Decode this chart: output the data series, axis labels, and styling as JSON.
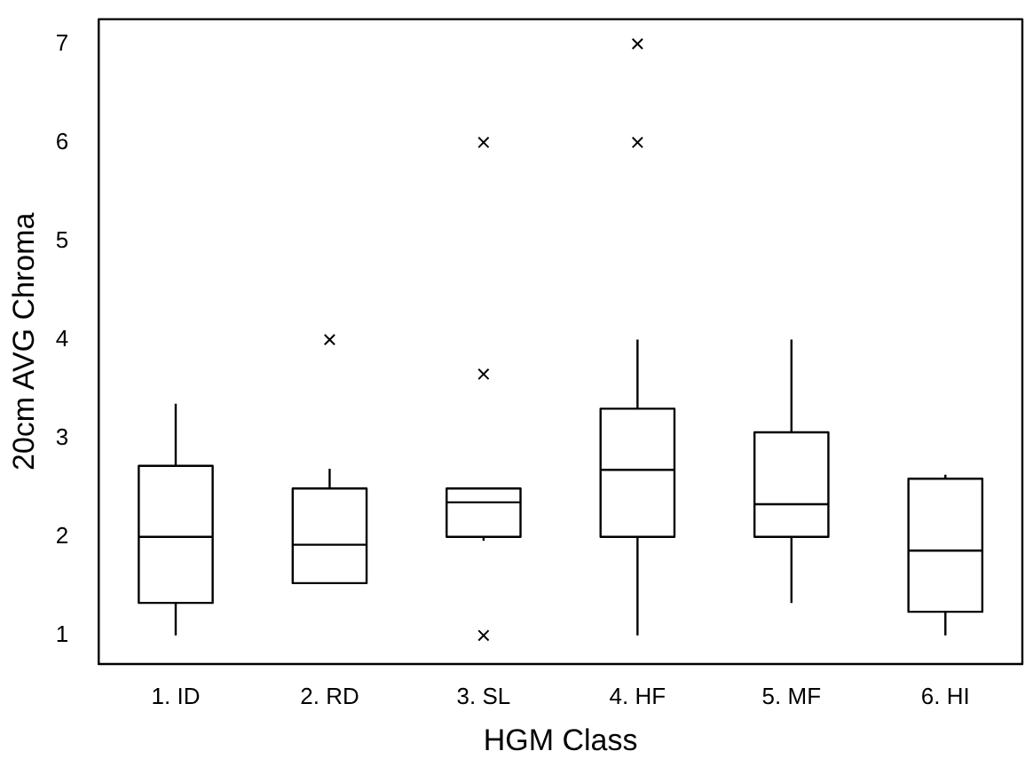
{
  "chart_data": {
    "type": "box",
    "xlabel": "HGM Class",
    "ylabel": "20cm AVG Chroma",
    "categories": [
      "1. ID",
      "2. RD",
      "3. SL",
      "4. HF",
      "5. MF",
      "6. HI"
    ],
    "boxes": [
      {
        "low": 1,
        "q1": 1.33,
        "median": 2,
        "q3": 2.72,
        "high": 3.35
      },
      {
        "low": 1.53,
        "q1": 1.53,
        "median": 1.92,
        "q3": 2.49,
        "high": 2.69,
        "outliers": [
          4
        ]
      },
      {
        "low": 1.96,
        "q1": 2,
        "median": 2.35,
        "q3": 2.49,
        "high": 2.49,
        "outliers": [
          6,
          3.65,
          1
        ]
      },
      {
        "low": 1,
        "q1": 2,
        "median": 2.68,
        "q3": 3.3,
        "high": 4,
        "outliers": [
          7,
          6
        ]
      },
      {
        "low": 1.33,
        "q1": 2,
        "median": 2.33,
        "q3": 3.06,
        "high": 4
      },
      {
        "low": 1,
        "q1": 1.24,
        "median": 1.86,
        "q3": 2.59,
        "high": 2.63
      }
    ],
    "color": "#000000",
    "marker": "cross",
    "ylim": [
      0.71,
      7.25
    ],
    "yticks": [
      1,
      2,
      3,
      4,
      5,
      6,
      7
    ],
    "grid": false,
    "legend": false
  }
}
